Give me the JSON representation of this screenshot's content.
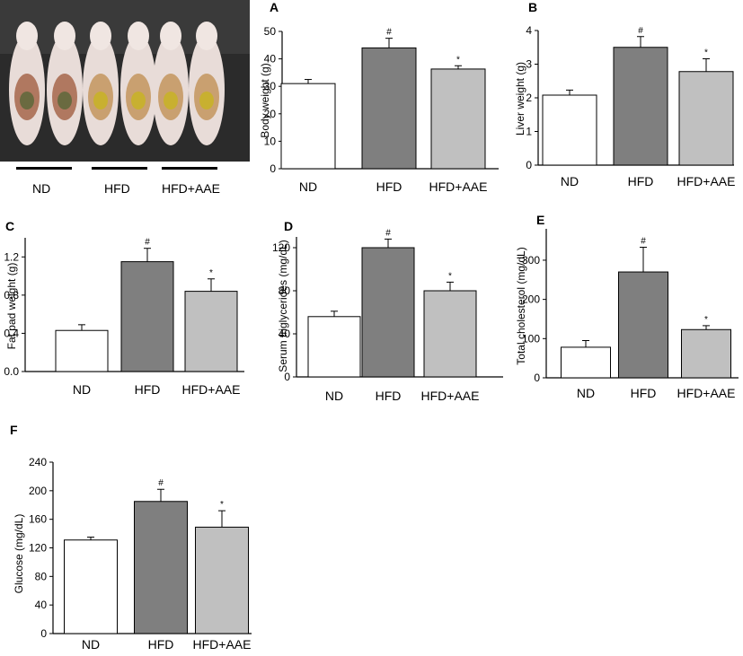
{
  "photo": {
    "labels": [
      "ND",
      "HFD",
      "HFD+AAE"
    ]
  },
  "colors": {
    "ND": "#ffffff",
    "HFD": "#7f7f7f",
    "HFD+AAE": "#c0c0c0",
    "axis": "#000000"
  },
  "chart_data": [
    {
      "panel": "A",
      "type": "bar",
      "categories": [
        "ND",
        "HFD",
        "HFD+AAE"
      ],
      "values": [
        31,
        44,
        36.3
      ],
      "errors": [
        1.5,
        3.5,
        1.2
      ],
      "markers": [
        "",
        "#",
        "*"
      ],
      "ylabel": "Body weight (g)",
      "xlabel": "",
      "ylim": [
        0,
        50
      ],
      "yticks": [
        "0",
        "10",
        "20",
        "30",
        "40",
        "50"
      ]
    },
    {
      "panel": "B",
      "type": "bar",
      "categories": [
        "ND",
        "HFD",
        "HFD+AAE"
      ],
      "values": [
        2.08,
        3.5,
        2.78
      ],
      "errors": [
        0.15,
        0.32,
        0.38
      ],
      "markers": [
        "",
        "#",
        "*"
      ],
      "ylabel": "Liver weight (g)",
      "xlabel": "",
      "ylim": [
        0,
        4
      ],
      "yticks": [
        "0",
        "1",
        "2",
        "3",
        "4"
      ]
    },
    {
      "panel": "C",
      "type": "bar",
      "categories": [
        "ND",
        "HFD",
        "HFD+AAE"
      ],
      "values": [
        0.43,
        1.15,
        0.84
      ],
      "errors": [
        0.06,
        0.14,
        0.13
      ],
      "markers": [
        "",
        "#",
        "*"
      ],
      "ylabel": "Fat pad weight (g)",
      "xlabel": "",
      "ylim": [
        0,
        1.4
      ],
      "yticks": [
        "0.0",
        "0.4",
        "0.8",
        "1.2"
      ]
    },
    {
      "panel": "D",
      "type": "bar",
      "categories": [
        "ND",
        "HFD",
        "HFD+AAE"
      ],
      "values": [
        56,
        120,
        80
      ],
      "errors": [
        5,
        8,
        8
      ],
      "markers": [
        "",
        "#",
        "*"
      ],
      "ylabel": "Serum triglycerides (mg/dL)",
      "xlabel": "",
      "ylim": [
        0,
        130
      ],
      "yticks": [
        "0",
        "40",
        "80",
        "120"
      ]
    },
    {
      "panel": "E",
      "type": "bar",
      "categories": [
        "ND",
        "HFD",
        "HFD+AAE"
      ],
      "values": [
        78,
        270,
        123
      ],
      "errors": [
        17,
        63,
        10
      ],
      "markers": [
        "",
        "#",
        "*"
      ],
      "ylabel": "Total cholesterol (mg/dL)",
      "xlabel": "",
      "ylim": [
        0,
        380
      ],
      "yticks": [
        "0",
        "100",
        "200",
        "300"
      ]
    },
    {
      "panel": "F",
      "type": "bar",
      "categories": [
        "ND",
        "HFD",
        "HFD+AAE"
      ],
      "values": [
        131,
        185,
        149
      ],
      "errors": [
        4,
        17,
        23
      ],
      "markers": [
        "",
        "#",
        "*"
      ],
      "ylabel": "Glucose (mg/dL)",
      "xlabel": "",
      "ylim": [
        0,
        240
      ],
      "yticks": [
        "0",
        "40",
        "80",
        "120",
        "160",
        "200",
        "240"
      ]
    }
  ]
}
